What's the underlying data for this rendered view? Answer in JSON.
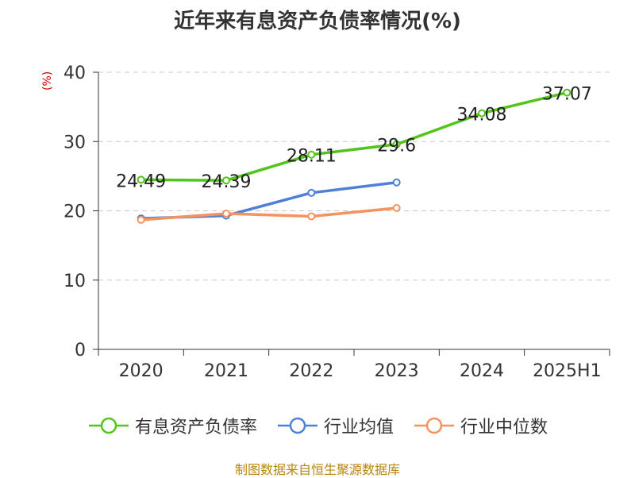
{
  "title": "近年来有息资产负债率情况(%)",
  "unit_label": "(%)",
  "source": "制图数据来自恒生聚源数据库",
  "chart_data": {
    "type": "line",
    "title": "近年来有息资产负债率情况(%)",
    "ylabel": "(%)",
    "xlabel": "",
    "categories": [
      "2020",
      "2021",
      "2022",
      "2023",
      "2024",
      "2025H1"
    ],
    "ylim": [
      0,
      40
    ],
    "yticks": [
      0,
      10,
      20,
      30,
      40
    ],
    "grid": true,
    "legend_position": "bottom",
    "series": [
      {
        "name": "有息资产负债率",
        "color": "#52c41a",
        "values": [
          24.49,
          24.39,
          28.11,
          29.6,
          34.08,
          37.07
        ],
        "labels": [
          "24.49",
          "24.39",
          "28.11",
          "29.6",
          "34.08",
          "37.07"
        ]
      },
      {
        "name": "行业均值",
        "color": "#4f80d8",
        "values": [
          18.9,
          19.3,
          22.6,
          24.1,
          null,
          null
        ]
      },
      {
        "name": "行业中位数",
        "color": "#f4935e",
        "values": [
          18.7,
          19.6,
          19.2,
          20.4,
          null,
          null
        ]
      }
    ]
  }
}
